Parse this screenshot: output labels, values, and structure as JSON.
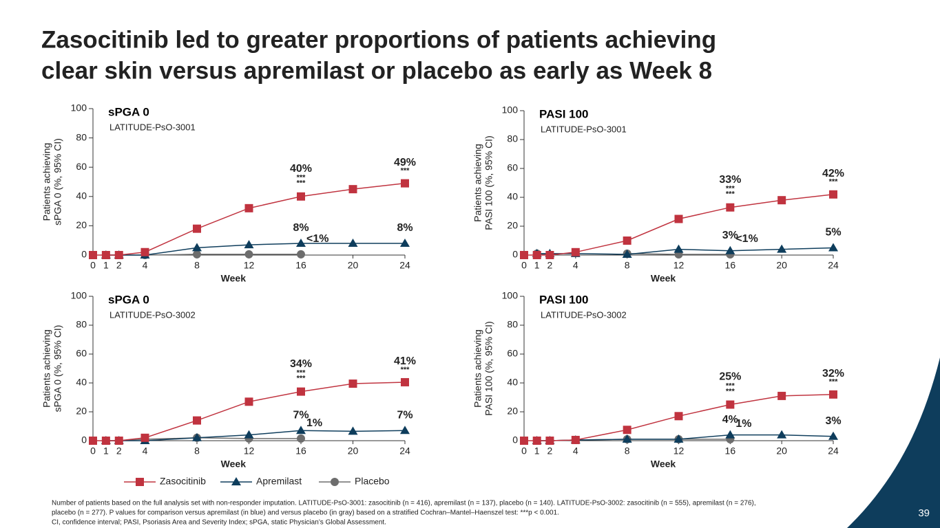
{
  "title": [
    "Zasocitinib led to greater proportions of patients achieving",
    "clear skin versus apremilast or placebo as early as Week 8"
  ],
  "footnote": [
    "Number of patients based on the full analysis set with non-responder imputation. LATITUDE-PsO-3001: zasocitinib (n = 416), apremilast (n = 137), placebo (n = 140). LATITUDE-PsO-3002: zasocitinib (n = 555), apremilast (n = 276),",
    "placebo (n = 277). P values for comparison versus apremilast (in blue) and versus placebo (in gray) based on a stratified Cochran–Mantel–Haenszel test: ***p < 0.001.",
    "CI, confidence interval; PASI, Psoriasis Area and Severity Index; sPGA, static Physician’s Global Assessment."
  ],
  "page_number": "39",
  "chart_data": [
    {
      "type": "line",
      "title": "sPGA 0",
      "subtitle": "LATITUDE-PsO-3001",
      "ylabel": [
        "Patients achieving",
        "sPGA 0 (%, 95% CI)"
      ],
      "xlabel": "Week",
      "x": [
        0,
        1,
        2,
        4,
        8,
        12,
        16,
        20,
        24
      ],
      "xlim": [
        0,
        24
      ],
      "xticks": [
        0,
        1,
        2,
        4,
        8,
        12,
        16,
        20,
        24
      ],
      "ylim": [
        0,
        100
      ],
      "yticks": [
        0,
        20,
        40,
        60,
        80,
        100
      ],
      "series": [
        {
          "name": "Zasocitinib",
          "color": "#c0333f",
          "marker": "square",
          "values": [
            0,
            0,
            0,
            2,
            18,
            32,
            40,
            45,
            49
          ],
          "value_labels": [
            null,
            null,
            null,
            null,
            null,
            null,
            "40%",
            null,
            "49%"
          ],
          "sig_vs_apremilast": [
            null,
            null,
            null,
            null,
            null,
            null,
            "***",
            null,
            "***"
          ],
          "sig_vs_placebo": [
            null,
            null,
            null,
            null,
            null,
            null,
            "***",
            null,
            null
          ]
        },
        {
          "name": "Apremilast",
          "color": "#0e3d5c",
          "marker": "triangle",
          "values": [
            null,
            0,
            0,
            0,
            5,
            7,
            8,
            8,
            8
          ],
          "value_labels": [
            null,
            null,
            null,
            null,
            null,
            null,
            "8%",
            null,
            "8%"
          ]
        },
        {
          "name": "Placebo",
          "color": "#6d6d6d",
          "marker": "circle",
          "values": [
            null,
            0,
            0,
            0,
            0.5,
            0.5,
            0.5,
            null,
            null
          ],
          "value_labels": [
            null,
            null,
            null,
            null,
            null,
            null,
            "<1%",
            null,
            null
          ]
        }
      ]
    },
    {
      "type": "line",
      "title": "PASI 100",
      "subtitle": "LATITUDE-PsO-3001",
      "ylabel": [
        "Patients achieving",
        "PASI 100 (%, 95% CI)"
      ],
      "xlabel": "Week",
      "x": [
        0,
        1,
        2,
        4,
        8,
        12,
        16,
        20,
        24
      ],
      "xlim": [
        0,
        24
      ],
      "xticks": [
        0,
        1,
        2,
        4,
        8,
        12,
        16,
        20,
        24
      ],
      "ylim": [
        0,
        100
      ],
      "yticks": [
        0,
        20,
        40,
        60,
        80,
        100
      ],
      "series": [
        {
          "name": "Zasocitinib",
          "color": "#c0333f",
          "marker": "square",
          "values": [
            0,
            0,
            0,
            2,
            10,
            25,
            33,
            38,
            42
          ],
          "value_labels": [
            null,
            null,
            null,
            null,
            null,
            null,
            "33%",
            null,
            "42%"
          ],
          "sig_vs_apremilast": [
            null,
            null,
            null,
            null,
            null,
            null,
            "***",
            null,
            "***"
          ],
          "sig_vs_placebo": [
            null,
            null,
            null,
            null,
            null,
            null,
            "***",
            null,
            null
          ]
        },
        {
          "name": "Apremilast",
          "color": "#0e3d5c",
          "marker": "triangle",
          "values": [
            null,
            1,
            1,
            1,
            0.5,
            4,
            3,
            4,
            5
          ],
          "value_labels": [
            null,
            null,
            null,
            null,
            null,
            null,
            "3%",
            null,
            "5%"
          ]
        },
        {
          "name": "Placebo",
          "color": "#6d6d6d",
          "marker": "circle",
          "values": [
            null,
            1,
            0,
            null,
            1,
            0.5,
            0.5,
            null,
            null
          ],
          "value_labels": [
            null,
            null,
            null,
            null,
            null,
            null,
            "<1%",
            null,
            null
          ]
        }
      ]
    },
    {
      "type": "line",
      "title": "sPGA 0",
      "subtitle": "LATITUDE-PsO-3002",
      "ylabel": [
        "Patients achieving",
        "sPGA 0 (%, 95% CI)"
      ],
      "xlabel": "Week",
      "x": [
        0,
        1,
        2,
        4,
        8,
        12,
        16,
        20,
        24
      ],
      "xlim": [
        0,
        24
      ],
      "xticks": [
        0,
        1,
        2,
        4,
        8,
        12,
        16,
        20,
        24
      ],
      "ylim": [
        0,
        100
      ],
      "yticks": [
        0,
        20,
        40,
        60,
        80,
        100
      ],
      "series": [
        {
          "name": "Zasocitinib",
          "color": "#c0333f",
          "marker": "square",
          "values": [
            0,
            0,
            0,
            2,
            14,
            27,
            34,
            39.5,
            40.5
          ],
          "value_labels": [
            null,
            null,
            null,
            null,
            null,
            null,
            "34%",
            null,
            "41%"
          ],
          "sig_vs_apremilast": [
            null,
            null,
            null,
            null,
            null,
            null,
            "***",
            null,
            "***"
          ],
          "sig_vs_placebo": [
            null,
            null,
            null,
            null,
            null,
            null,
            "***",
            null,
            null
          ]
        },
        {
          "name": "Apremilast",
          "color": "#0e3d5c",
          "marker": "triangle",
          "values": [
            null,
            0,
            0,
            0,
            2,
            4,
            7,
            6.5,
            7
          ],
          "value_labels": [
            null,
            null,
            null,
            null,
            null,
            null,
            "7%",
            null,
            "7%"
          ]
        },
        {
          "name": "Placebo",
          "color": "#6d6d6d",
          "marker": "circle",
          "values": [
            null,
            0,
            0,
            1,
            2,
            1.5,
            1.5,
            null,
            null
          ],
          "value_labels": [
            null,
            null,
            null,
            null,
            null,
            null,
            "1%",
            null,
            null
          ]
        }
      ]
    },
    {
      "type": "line",
      "title": "PASI 100",
      "subtitle": "LATITUDE-PsO-3002",
      "ylabel": [
        "Patients achieving",
        "PASI 100 (%, 95% CI)"
      ],
      "xlabel": "Week",
      "x": [
        0,
        1,
        2,
        4,
        8,
        12,
        16,
        20,
        24
      ],
      "xlim": [
        0,
        24
      ],
      "xticks": [
        0,
        1,
        2,
        4,
        8,
        12,
        16,
        20,
        24
      ],
      "ylim": [
        0,
        100
      ],
      "yticks": [
        0,
        20,
        40,
        60,
        80,
        100
      ],
      "series": [
        {
          "name": "Zasocitinib",
          "color": "#c0333f",
          "marker": "square",
          "values": [
            0,
            0,
            0,
            0.5,
            7.5,
            17,
            25,
            31,
            32
          ],
          "value_labels": [
            null,
            null,
            null,
            null,
            null,
            null,
            "25%",
            null,
            "32%"
          ],
          "sig_vs_apremilast": [
            null,
            null,
            null,
            null,
            null,
            null,
            "***",
            null,
            "***"
          ],
          "sig_vs_placebo": [
            null,
            null,
            null,
            null,
            null,
            null,
            "***",
            null,
            null
          ]
        },
        {
          "name": "Apremilast",
          "color": "#0e3d5c",
          "marker": "triangle",
          "values": [
            null,
            0,
            0,
            0.5,
            1,
            1,
            4,
            4,
            3
          ],
          "value_labels": [
            null,
            null,
            null,
            null,
            null,
            null,
            "4%",
            null,
            "3%"
          ]
        },
        {
          "name": "Placebo",
          "color": "#6d6d6d",
          "marker": "circle",
          "values": [
            null,
            0,
            0,
            0.5,
            1,
            1,
            1,
            null,
            null
          ],
          "value_labels": [
            null,
            null,
            null,
            null,
            null,
            null,
            "1%",
            null,
            null
          ]
        }
      ]
    }
  ]
}
